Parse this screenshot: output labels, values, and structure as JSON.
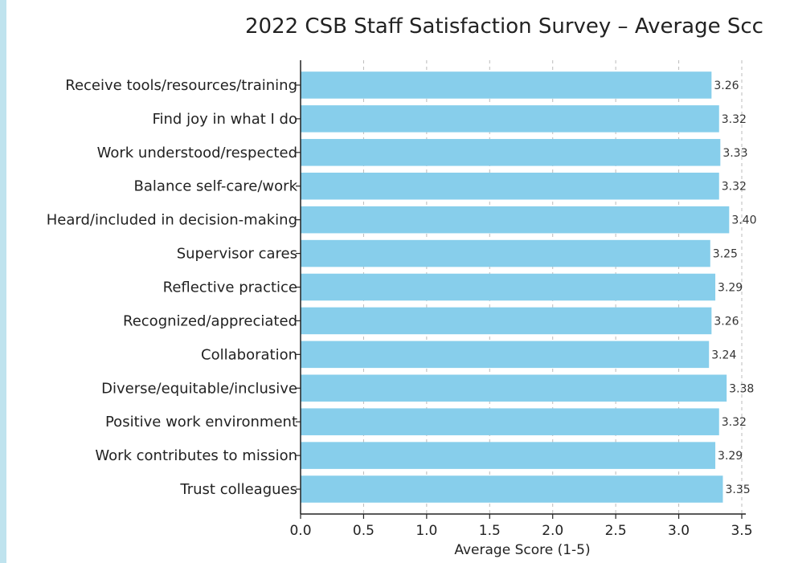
{
  "chart_data": {
    "type": "bar",
    "orientation": "horizontal",
    "title": "2022 CSB Staff Satisfaction Survey – Average Scc",
    "xlabel": "Average Score (1-5)",
    "ylabel": "",
    "xlim": [
      0,
      3.5
    ],
    "xticks": [
      "0.0",
      "0.5",
      "1.0",
      "1.5",
      "2.0",
      "2.5",
      "3.0",
      "3.5"
    ],
    "grid": "vertical dashed",
    "bar_color": "#87ceeb",
    "categories": [
      "Receive tools/resources/training",
      "Find joy in what I do",
      "Work understood/respected",
      "Balance self-care/work",
      "Heard/included in decision-making",
      "Supervisor cares",
      "Reflective practice",
      "Recognized/appreciated",
      "Collaboration",
      "Diverse/equitable/inclusive",
      "Positive work environment",
      "Work contributes to mission",
      "Trust colleagues"
    ],
    "values": [
      3.26,
      3.32,
      3.33,
      3.32,
      3.4,
      3.25,
      3.29,
      3.26,
      3.24,
      3.38,
      3.32,
      3.29,
      3.35
    ],
    "value_labels": [
      "3.26",
      "3.32",
      "3.33",
      "3.32",
      "3.40",
      "3.25",
      "3.29",
      "3.26",
      "3.24",
      "3.38",
      "3.32",
      "3.29",
      "3.35"
    ]
  }
}
